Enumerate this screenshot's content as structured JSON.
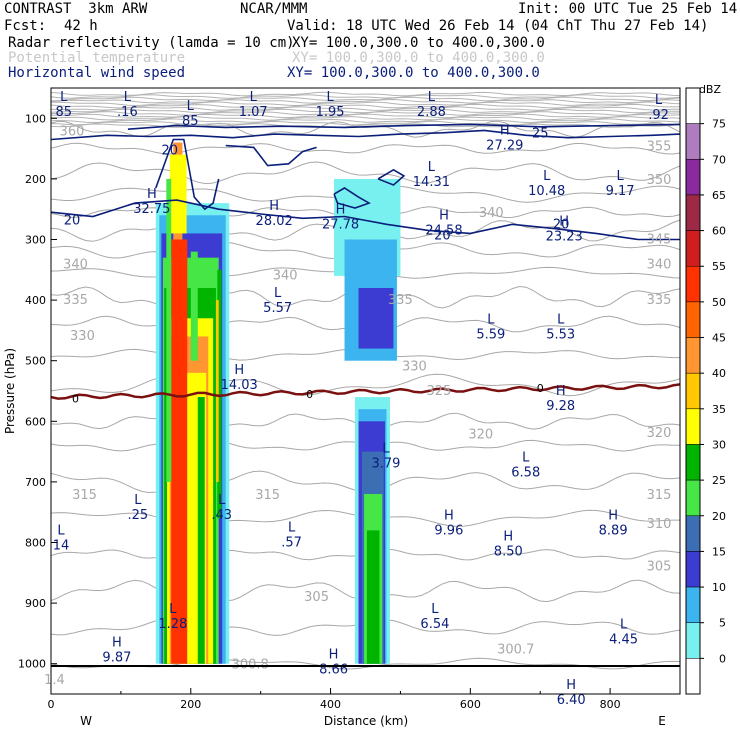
{
  "header": {
    "title": "CONTRAST  3km ARW",
    "org": "NCAR/MMM",
    "init": "Init: 00 UTC Tue 25 Feb 14",
    "fcst_label": "Fcst:",
    "fcst_value": "42 h",
    "valid": "Valid: 18 UTC Wed 26 Feb 14 (04 ChT Thu 27 Feb 14)",
    "fields": [
      {
        "name": "Radar reflectivity (lamda = 10 cm)",
        "xy": "XY= 100.0,300.0 to 400.0,300.0",
        "color": "#000000"
      },
      {
        "name": "Potential temperature",
        "xy": "XY= 100.0,300.0 to 400.0,300.0",
        "color": "#c0c0c0"
      },
      {
        "name": "Horizontal wind speed",
        "xy": "XY= 100.0,300.0 to 400.0,300.0",
        "color": "#0a1e7a"
      }
    ]
  },
  "chart_data": {
    "type": "cross-section",
    "xlabel": "Distance (km)",
    "ylabel": "Pressure (hPa)",
    "xlim": [
      0,
      900
    ],
    "ylim": [
      1050,
      50
    ],
    "x_ticks": [
      0,
      200,
      400,
      600,
      800
    ],
    "y_ticks": [
      100,
      200,
      300,
      400,
      500,
      600,
      700,
      800,
      900,
      1000
    ],
    "x_end_labels": {
      "left": "W",
      "right": "E"
    },
    "colorbar": {
      "unit": "dBZ",
      "levels": [
        75,
        70,
        65,
        60,
        55,
        50,
        45,
        40,
        35,
        30,
        25,
        20,
        15,
        10,
        5,
        0
      ],
      "colors": [
        "#ffffff",
        "#b07cc0",
        "#8a2a9c",
        "#9c2a46",
        "#d01e1e",
        "#ff3200",
        "#ff6400",
        "#ff9632",
        "#ffc800",
        "#ffff00",
        "#00b400",
        "#46e646",
        "#3c6eb4",
        "#3c3cd2",
        "#3cb4f0",
        "#78f0f0",
        "#ffffff"
      ]
    },
    "reflectivity_cells": [
      {
        "x_start": 150,
        "x_end": 250,
        "top_hPa": 140,
        "bottom_hPa": 1000,
        "max_dBZ": 50
      },
      {
        "x_start": 430,
        "x_end": 490,
        "top_hPa": 180,
        "bottom_hPa": 1000,
        "max_dBZ": 35
      }
    ],
    "theta_labels": [
      {
        "x": 30,
        "p": 120,
        "v": "360"
      },
      {
        "x": 35,
        "p": 340,
        "v": "340"
      },
      {
        "x": 35,
        "p": 398,
        "v": "335"
      },
      {
        "x": 45,
        "p": 458,
        "v": "330"
      },
      {
        "x": 48,
        "p": 720,
        "v": "315"
      },
      {
        "x": 870,
        "p": 145,
        "v": "355"
      },
      {
        "x": 870,
        "p": 200,
        "v": "350"
      },
      {
        "x": 870,
        "p": 298,
        "v": "345"
      },
      {
        "x": 870,
        "p": 340,
        "v": "340"
      },
      {
        "x": 870,
        "p": 398,
        "v": "335"
      },
      {
        "x": 870,
        "p": 618,
        "v": "320"
      },
      {
        "x": 870,
        "p": 720,
        "v": "315"
      },
      {
        "x": 870,
        "p": 768,
        "v": "310"
      },
      {
        "x": 870,
        "p": 838,
        "v": "305"
      },
      {
        "x": 335,
        "p": 358,
        "v": "340"
      },
      {
        "x": 500,
        "p": 398,
        "v": "335"
      },
      {
        "x": 520,
        "p": 508,
        "v": "330"
      },
      {
        "x": 555,
        "p": 548,
        "v": "325"
      },
      {
        "x": 380,
        "p": 888,
        "v": "305"
      },
      {
        "x": 310,
        "p": 720,
        "v": "315"
      },
      {
        "x": 630,
        "p": 255,
        "v": "340"
      },
      {
        "x": 615,
        "p": 620,
        "v": "320"
      }
    ],
    "max_min_labels": [
      {
        "t": "L",
        "v": "85",
        "x": 4,
        "p": 75
      },
      {
        "t": "L",
        "v": ".16",
        "x": 95,
        "p": 75
      },
      {
        "t": "L",
        "v": "85",
        "x": 185,
        "p": 90
      },
      {
        "t": "L",
        "v": "1.07",
        "x": 275,
        "p": 75
      },
      {
        "t": "L",
        "v": "1.95",
        "x": 385,
        "p": 75
      },
      {
        "t": "L",
        "v": "2.88",
        "x": 530,
        "p": 75
      },
      {
        "t": "L",
        "v": ".92",
        "x": 855,
        "p": 80
      },
      {
        "t": "H",
        "v": "27.29",
        "x": 635,
        "p": 130
      },
      {
        "t": "L",
        "v": "14.31",
        "x": 530,
        "p": 190
      },
      {
        "t": "L",
        "v": "10.48",
        "x": 695,
        "p": 205
      },
      {
        "t": "L",
        "v": "9.17",
        "x": 800,
        "p": 205
      },
      {
        "t": "H",
        "v": "32.75",
        "x": 130,
        "p": 235
      },
      {
        "t": "H",
        "v": "28.02",
        "x": 305,
        "p": 255
      },
      {
        "t": "H",
        "v": "27.78",
        "x": 400,
        "p": 260
      },
      {
        "t": "H",
        "v": "24.58",
        "x": 548,
        "p": 270
      },
      {
        "t": "H",
        "v": "23.23",
        "x": 720,
        "p": 280
      },
      {
        "t": "L",
        "v": "5.57",
        "x": 310,
        "p": 398
      },
      {
        "t": "L",
        "v": "5.59",
        "x": 615,
        "p": 442
      },
      {
        "t": "L",
        "v": "5.53",
        "x": 715,
        "p": 442
      },
      {
        "t": "H",
        "v": "14.03",
        "x": 255,
        "p": 525
      },
      {
        "t": "H",
        "v": "9.28",
        "x": 715,
        "p": 560
      },
      {
        "t": "L",
        "v": "3.79",
        "x": 465,
        "p": 655
      },
      {
        "t": "L",
        "v": "6.58",
        "x": 665,
        "p": 670
      },
      {
        "t": "L",
        "v": ".25",
        "x": 110,
        "p": 740
      },
      {
        "t": "L",
        "v": ".43",
        "x": 230,
        "p": 740
      },
      {
        "t": "H",
        "v": "9.96",
        "x": 555,
        "p": 765
      },
      {
        "t": "H",
        "v": "8.89",
        "x": 790,
        "p": 765
      },
      {
        "t": "L",
        "v": ".57",
        "x": 330,
        "p": 785
      },
      {
        "t": "L",
        "v": "14",
        "x": 0,
        "p": 790
      },
      {
        "t": "H",
        "v": "8.50",
        "x": 640,
        "p": 800
      },
      {
        "t": "L",
        "v": "1.28",
        "x": 160,
        "p": 920
      },
      {
        "t": "L",
        "v": "6.54",
        "x": 535,
        "p": 920
      },
      {
        "t": "L",
        "v": "4.45",
        "x": 805,
        "p": 945
      },
      {
        "t": "H",
        "v": "9.87",
        "x": 80,
        "p": 975
      },
      {
        "t": "H",
        "v": "8.66",
        "x": 390,
        "p": 995
      },
      {
        "t": "H",
        "v": "6.40",
        "x": 730,
        "p": 1045
      }
    ],
    "theta_gray_labels": [
      {
        "v": "300.8",
        "x": 285,
        "p": 1000
      },
      {
        "v": "300.7",
        "x": 665,
        "p": 975
      },
      {
        "v": "1.4",
        "x": 5,
        "p": 1025
      }
    ],
    "freezing_level_label": "0",
    "wind_contour_label": "20",
    "wind_contour_label_25": "25"
  }
}
